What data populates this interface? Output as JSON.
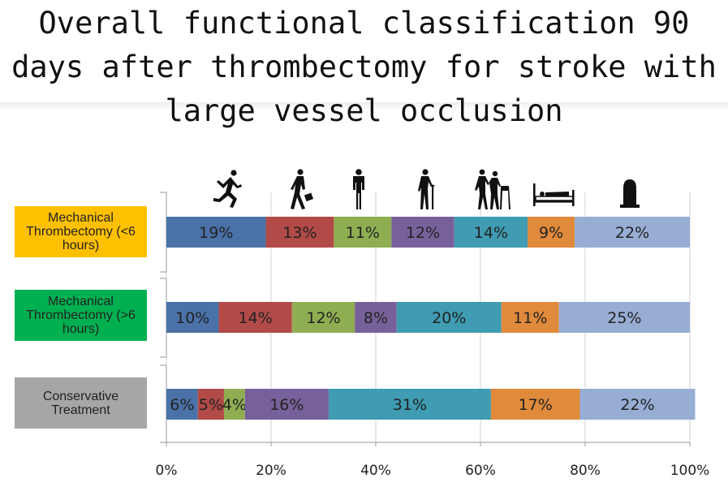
{
  "title": "Overall functional classification 90 days after thrombectomy for stroke with large vessel occlusion",
  "chart_data": {
    "type": "bar",
    "orientation": "horizontal",
    "stacked": true,
    "categories": [
      "Mechanical Thrombectomy (<6 hours)",
      "Mechanical Thrombectomy (>6 hours)",
      "Conservative Treatment"
    ],
    "category_colors": [
      "#ffc000",
      "#00b050",
      "#a6a6a6"
    ],
    "series": [
      {
        "values": [
          19,
          10,
          6
        ],
        "color": "#4a72a8"
      },
      {
        "values": [
          13,
          14,
          5
        ],
        "color": "#b24a47"
      },
      {
        "values": [
          11,
          12,
          4
        ],
        "color": "#8fae52"
      },
      {
        "values": [
          12,
          8,
          16
        ],
        "color": "#77619a"
      },
      {
        "values": [
          14,
          20,
          31
        ],
        "color": "#3f9cb2"
      },
      {
        "values": [
          9,
          11,
          17
        ],
        "color": "#e08a3c"
      },
      {
        "values": [
          22,
          25,
          22
        ],
        "color": "#97add4"
      }
    ],
    "xlim": [
      0,
      100
    ],
    "xticks": [
      "0%",
      "20%",
      "40%",
      "60%",
      "80%",
      "100%"
    ],
    "grid": true,
    "value_suffix": "%"
  },
  "icons": [
    "running-person-icon",
    "walking-with-briefcase-icon",
    "standing-person-icon",
    "person-with-cane-icon",
    "person-assisted-walker-icon",
    "person-in-bed-icon",
    "tombstone-icon"
  ]
}
